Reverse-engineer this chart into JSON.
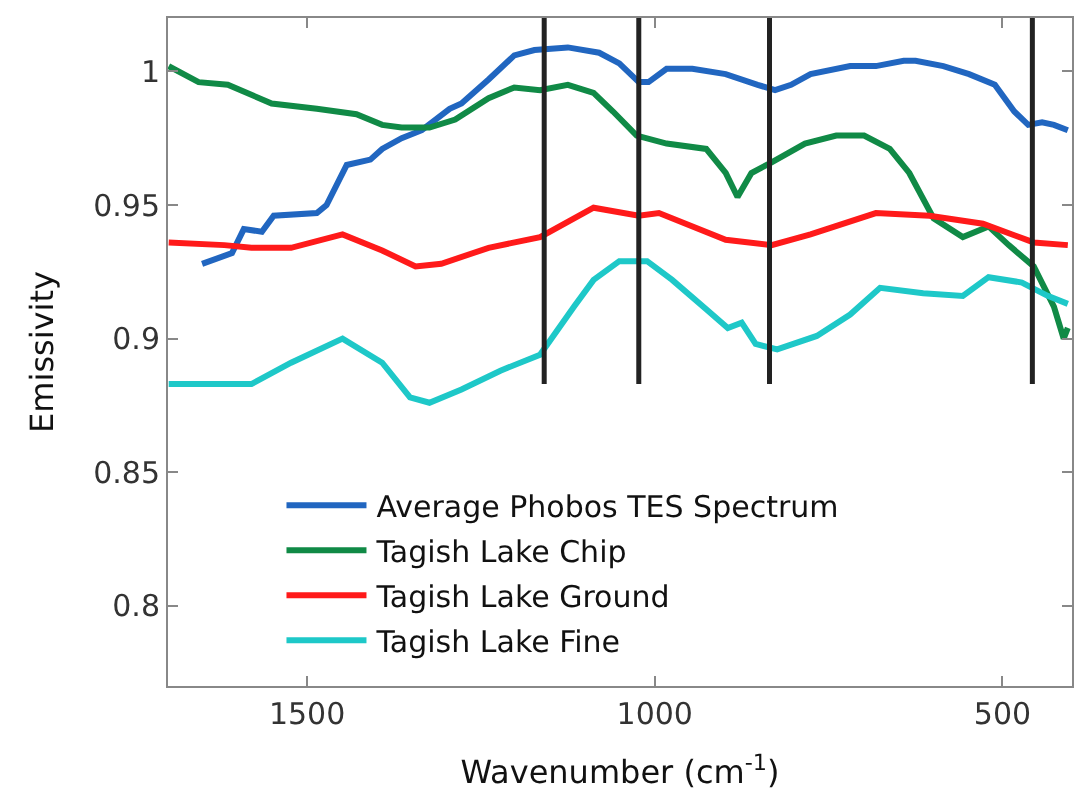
{
  "chart_data": {
    "type": "line",
    "xlabel": "Wavenumber (cm$^{-1}$)",
    "ylabel": "Emissivity",
    "xlim": [
      1700,
      400
    ],
    "xticks": [
      1500,
      1000,
      500
    ],
    "ylim": [
      0.77,
      1.02
    ],
    "yticks": [
      0.8,
      0.85,
      0.9,
      0.95,
      1
    ],
    "legend": "bottom",
    "line_style": "solid",
    "marker": "none",
    "series": [
      {
        "name": "Average Phobos TES Spectrum",
        "color": "#2166c0",
        "x": [
          1651,
          1608,
          1591,
          1565,
          1548,
          1486,
          1472,
          1443,
          1409,
          1392,
          1364,
          1335,
          1295,
          1278,
          1239,
          1202,
          1173,
          1125,
          1080,
          1051,
          1023,
          1009,
          983,
          946,
          898,
          852,
          827,
          804,
          776,
          719,
          682,
          642,
          625,
          585,
          548,
          511,
          483,
          463,
          443,
          426,
          406
        ],
        "values": [
          0.928,
          0.932,
          0.941,
          0.94,
          0.946,
          0.947,
          0.95,
          0.965,
          0.967,
          0.971,
          0.975,
          0.978,
          0.986,
          0.988,
          0.997,
          1.006,
          1.008,
          1.009,
          1.007,
          1.003,
          0.996,
          0.996,
          1.001,
          1.001,
          0.999,
          0.995,
          0.993,
          0.995,
          0.999,
          1.002,
          1.002,
          1.004,
          1.004,
          1.002,
          0.999,
          0.995,
          0.985,
          0.98,
          0.981,
          0.98,
          0.978
        ]
      },
      {
        "name": "Tagish Lake Chip",
        "color": "#108a46",
        "x": [
          1699,
          1656,
          1614,
          1551,
          1486,
          1429,
          1392,
          1364,
          1324,
          1287,
          1239,
          1202,
          1165,
          1125,
          1088,
          1060,
          1026,
          983,
          926,
          898,
          881,
          861,
          832,
          784,
          739,
          699,
          662,
          634,
          599,
          557,
          520,
          491,
          455,
          426,
          412,
          406
        ],
        "values": [
          1.002,
          0.996,
          0.995,
          0.988,
          0.986,
          0.984,
          0.98,
          0.979,
          0.979,
          0.982,
          0.99,
          0.994,
          0.993,
          0.995,
          0.992,
          0.985,
          0.976,
          0.973,
          0.971,
          0.962,
          0.953,
          0.962,
          0.966,
          0.973,
          0.976,
          0.976,
          0.971,
          0.962,
          0.945,
          0.938,
          0.942,
          0.935,
          0.927,
          0.912,
          0.9,
          0.904
        ]
      },
      {
        "name": "Tagish Lake Ground",
        "color": "#ff1a1a",
        "x": [
          1699,
          1619,
          1580,
          1523,
          1449,
          1392,
          1344,
          1307,
          1239,
          1165,
          1088,
          1023,
          994,
          898,
          832,
          776,
          682,
          605,
          528,
          455,
          406
        ],
        "values": [
          0.936,
          0.935,
          0.934,
          0.934,
          0.939,
          0.933,
          0.927,
          0.928,
          0.934,
          0.938,
          0.949,
          0.946,
          0.947,
          0.937,
          0.935,
          0.939,
          0.947,
          0.946,
          0.943,
          0.936,
          0.935
        ]
      },
      {
        "name": "Tagish Lake Fine",
        "color": "#1ec8c8",
        "x": [
          1699,
          1580,
          1523,
          1449,
          1392,
          1352,
          1324,
          1278,
          1222,
          1165,
          1116,
          1088,
          1051,
          1011,
          975,
          926,
          895,
          875,
          855,
          824,
          767,
          719,
          676,
          614,
          557,
          520,
          472,
          435,
          406
        ],
        "values": [
          0.883,
          0.883,
          0.891,
          0.9,
          0.891,
          0.878,
          0.876,
          0.881,
          0.888,
          0.894,
          0.912,
          0.922,
          0.929,
          0.929,
          0.922,
          0.911,
          0.904,
          0.906,
          0.898,
          0.896,
          0.901,
          0.909,
          0.919,
          0.917,
          0.916,
          0.923,
          0.921,
          0.916,
          0.913
        ]
      },
      {
        "color": "#222222",
        "x": [
          1159,
          1159
        ],
        "values": [
          1.02,
          0.883
        ]
      },
      {
        "color": "#222222",
        "x": [
          1023,
          1023
        ],
        "values": [
          1.02,
          0.883
        ]
      },
      {
        "color": "#222222",
        "x": [
          835,
          835
        ],
        "values": [
          1.02,
          0.883
        ]
      },
      {
        "color": "#222222",
        "x": [
          457,
          457
        ],
        "values": [
          1.02,
          0.883
        ]
      }
    ]
  }
}
